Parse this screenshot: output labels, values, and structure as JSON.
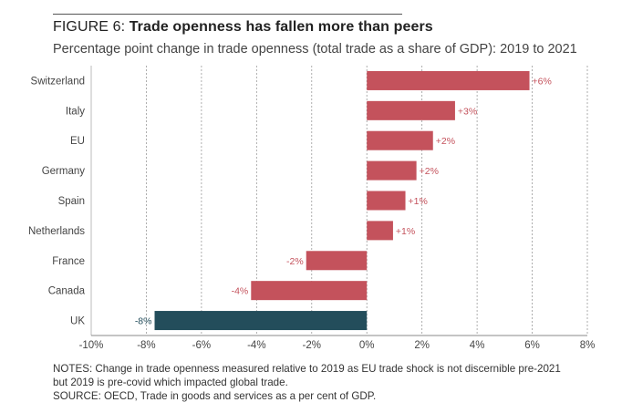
{
  "figure": {
    "number": "FIGURE 6:",
    "title": "Trade openness has fallen more than peers",
    "subtitle": "Percentage point change in trade openness (total trade as a share of GDP): 2019 to 2021"
  },
  "chart_data": {
    "type": "bar",
    "orientation": "horizontal",
    "categories": [
      "Switzerland",
      "Italy",
      "EU",
      "Germany",
      "Spain",
      "Netherlands",
      "France",
      "Canada",
      "UK"
    ],
    "values": [
      5.9,
      3.2,
      2.4,
      1.8,
      1.4,
      0.95,
      -2.2,
      -4.2,
      -7.7
    ],
    "data_labels": [
      "+6%",
      "+3%",
      "+2%",
      "+2%",
      "+1%",
      "+1%",
      "-2%",
      "-4%",
      "-8%"
    ],
    "xlim": [
      -10,
      8
    ],
    "x_ticks": [
      -10,
      -8,
      -6,
      -4,
      -2,
      0,
      2,
      4,
      6,
      8
    ],
    "x_tick_labels": [
      "-10%",
      "-8%",
      "-6%",
      "-4%",
      "-2%",
      "0%",
      "2%",
      "4%",
      "6%",
      "8%"
    ],
    "grid": "vertical dashed",
    "colors": {
      "default": "#c4525c",
      "highlight": "#234d5b",
      "highlight_category": "UK"
    }
  },
  "notes": {
    "line1": "NOTES: Change in trade openness measured relative to 2019 as EU trade shock is not discernible pre-2021",
    "line2": "but 2019 is pre-covid which impacted global trade.",
    "line3": "SOURCE: OECD, Trade in goods and services as a per cent of GDP."
  }
}
